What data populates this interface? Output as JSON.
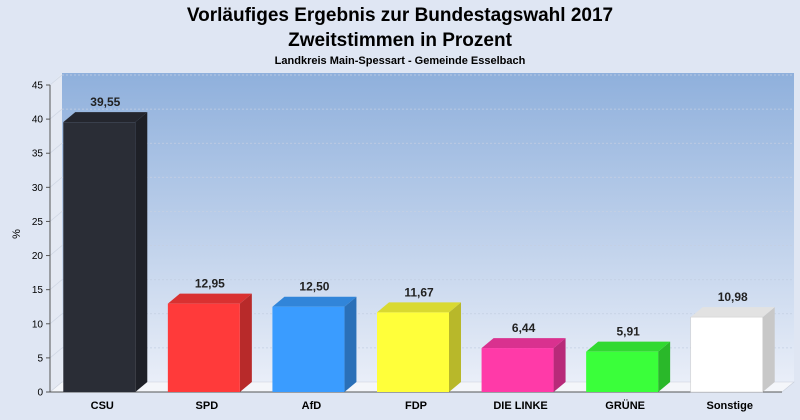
{
  "chart_data": {
    "type": "bar",
    "title": "Vorläufiges Ergebnis zur Bundestagswahl 2017",
    "title2": "Zweitstimmen in Prozent",
    "subtitle": "Landkreis Main-Spessart - Gemeinde Esselbach",
    "ylabel": "%",
    "ylim": [
      0,
      45
    ],
    "yticks": [
      0,
      5,
      10,
      15,
      20,
      25,
      30,
      35,
      40,
      45
    ],
    "grid": true,
    "categories": [
      "CSU",
      "SPD",
      "AfD",
      "FDP",
      "DIE LINKE",
      "GRÜNE",
      "Sonstige"
    ],
    "values": [
      39.55,
      12.95,
      12.5,
      11.67,
      6.44,
      5.91,
      10.98
    ],
    "value_labels": [
      "39,55",
      "12,95",
      "12,50",
      "11,67",
      "6,44",
      "5,91",
      "10,98"
    ],
    "colors": [
      "#2a2d36",
      "#ff3a3a",
      "#3a9cff",
      "#ffff3a",
      "#ff3aa8",
      "#3aff3a",
      "#ffffff"
    ]
  }
}
